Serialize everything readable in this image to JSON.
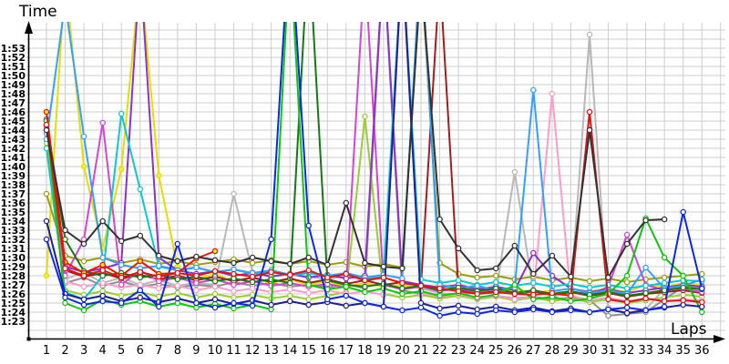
{
  "chart_data": {
    "type": "line",
    "title": "",
    "ylabel": "Time",
    "xlabel": "Laps",
    "grid": true,
    "legend_position": "none",
    "x_ticks": [
      1,
      2,
      3,
      4,
      5,
      6,
      7,
      8,
      9,
      10,
      11,
      12,
      13,
      14,
      15,
      16,
      17,
      18,
      19,
      20,
      21,
      22,
      23,
      24,
      25,
      26,
      27,
      28,
      29,
      30,
      31,
      32,
      33,
      34,
      35,
      36
    ],
    "y_ticks": [
      "1:23",
      "1:24",
      "1:25",
      "1:26",
      "1:27",
      "1:28",
      "1:29",
      "1:30",
      "1:31",
      "1:32",
      "1:33",
      "1:34",
      "1:35",
      "1:36",
      "1:37",
      "1:38",
      "1:39",
      "1:40",
      "1:41",
      "1:42",
      "1:43",
      "1:44",
      "1:45",
      "1:46",
      "1:47",
      "1:48",
      "1:49",
      "1:50",
      "1:51",
      "1:52",
      "1:53"
    ],
    "ylim_seconds": [
      83,
      113
    ],
    "xlim_laps": [
      1,
      36
    ],
    "note_units": "values are lap times in seconds; values above ~115 are pit laps drawn off the top of the plot",
    "colors": {
      "gridline": "#cdcdcd",
      "axis": "#000000",
      "background": "#ffffff"
    },
    "series": [
      {
        "name": "silver",
        "color": "#b8b8b8",
        "marker_fill": "#ffffff",
        "values": [
          104.3,
          87.6,
          88.4,
          87.2,
          87.8,
          87.0,
          87.5,
          86.9,
          87.2,
          87.0,
          97.0,
          88.4,
          88.0,
          88.2,
          87.9,
          87.6,
          88.0,
          87.4,
          87.8,
          122.0,
          86.6,
          86.1,
          85.9,
          86.2,
          86.0,
          99.4,
          86.2,
          85.8,
          86.0,
          114.5,
          84.5,
          83.9,
          84.3,
          86.6,
          87.1,
          87.0
        ]
      },
      {
        "name": "gray",
        "color": "#909090",
        "marker_fill": "#ffffff",
        "values": [
          103.6,
          87.2,
          87.8,
          86.9,
          87.4,
          86.8,
          87.1,
          86.7,
          87.0,
          86.8,
          87.3,
          86.9,
          87.2,
          86.8,
          87.0,
          86.7,
          87.1,
          86.6,
          122.5,
          86.4,
          86.0,
          85.7,
          85.9,
          85.6,
          85.8,
          85.5,
          85.7,
          85.4,
          85.6,
          85.3,
          83.6,
          83.8,
          84.0,
          85.4,
          86.8,
          86.6
        ]
      },
      {
        "name": "yellow",
        "color": "#e8dc00",
        "marker_fill": "#f6ec3c",
        "values": [
          88.0,
          121.0,
          100.0,
          91.0,
          99.7,
          121.0,
          99.0,
          89.0,
          87.6,
          88.2,
          87.4,
          87.8,
          87.2,
          87.6,
          87.0,
          87.4,
          86.8,
          87.2,
          86.8,
          87.0,
          86.6,
          86.9,
          86.4,
          86.7,
          86.2,
          86.5,
          86.1,
          86.4,
          86.0,
          86.3,
          86.6,
          86.2,
          87.0,
          86.8,
          87.2,
          87.0
        ]
      },
      {
        "name": "olive",
        "color": "#9c9c14",
        "marker_fill": "#ffffff",
        "values": [
          97.0,
          90.2,
          89.6,
          90.0,
          89.4,
          89.8,
          89.3,
          89.6,
          89.2,
          89.5,
          89.8,
          89.4,
          89.7,
          89.3,
          89.6,
          89.2,
          89.5,
          89.0,
          89.3,
          88.9,
          121.5,
          89.4,
          88.2,
          87.8,
          88.0,
          87.6,
          87.9,
          87.5,
          87.8,
          87.4,
          87.7,
          87.3,
          87.6,
          87.8,
          88.0,
          88.2
        ]
      },
      {
        "name": "yellowgreen",
        "color": "#9acd32",
        "marker_fill": "#ffffff",
        "values": [
          102.6,
          86.4,
          85.9,
          86.3,
          85.8,
          86.2,
          85.7,
          86.1,
          85.6,
          86.0,
          85.6,
          85.9,
          85.5,
          85.8,
          85.4,
          85.8,
          86.2,
          105.5,
          86.0,
          85.6,
          85.9,
          85.5,
          85.8,
          85.4,
          85.7,
          85.3,
          85.6,
          85.2,
          85.5,
          85.1,
          85.4,
          85.0,
          85.3,
          85.6,
          85.9,
          85.7
        ]
      },
      {
        "name": "pink",
        "color": "#ff9cc8",
        "marker_fill": "#ffffff",
        "values": [
          104.4,
          87.4,
          86.8,
          87.2,
          86.7,
          87.0,
          86.6,
          86.9,
          86.4,
          86.8,
          86.3,
          86.6,
          86.2,
          86.5,
          86.1,
          86.4,
          86.0,
          86.3,
          85.9,
          122.0,
          86.1,
          85.7,
          86.0,
          85.5,
          85.8,
          85.4,
          85.7,
          108.0,
          85.8,
          85.3,
          85.6,
          85.2,
          85.5,
          85.2,
          85.4,
          85.3
        ]
      },
      {
        "name": "darkred",
        "color": "#a01e1e",
        "marker_fill": "#ffffff",
        "values": [
          104.5,
          88.6,
          87.9,
          88.3,
          87.7,
          88.1,
          87.6,
          88.0,
          87.5,
          87.9,
          87.4,
          87.8,
          87.3,
          87.7,
          87.2,
          87.6,
          87.1,
          87.5,
          87.0,
          87.3,
          86.9,
          121.0,
          86.5,
          86.1,
          86.4,
          86.0,
          86.3,
          85.9,
          86.2,
          85.8,
          86.1,
          85.7,
          86.0,
          86.2,
          86.4,
          86.1
        ]
      },
      {
        "name": "magenta",
        "color": "#d246d2",
        "marker_fill": "#ffffff",
        "values": [
          104.5,
          88.0,
          92.0,
          104.8,
          87.0,
          88.6,
          87.4,
          87.8,
          87.2,
          87.6,
          87.0,
          87.4,
          86.9,
          87.2,
          86.8,
          87.1,
          86.7,
          122.0,
          87.0,
          86.5,
          86.8,
          86.3,
          86.6,
          86.2,
          86.5,
          86.1,
          86.4,
          86.0,
          86.3,
          85.9,
          86.8,
          92.5,
          87.0,
          86.4,
          86.6,
          86.2
        ]
      },
      {
        "name": "violet",
        "color": "#8c32c8",
        "marker_fill": "#ffffff",
        "values": [
          105.2,
          89.0,
          88.4,
          88.8,
          89.4,
          122.0,
          90.0,
          88.6,
          88.2,
          88.5,
          88.0,
          88.3,
          87.9,
          88.2,
          87.8,
          88.1,
          87.7,
          88.0,
          123.0,
          87.4,
          87.0,
          86.7,
          87.0,
          86.5,
          86.8,
          86.4,
          90.5,
          88.0,
          86.6,
          86.2,
          86.5,
          86.1,
          86.4,
          86.7,
          87.0,
          86.8
        ]
      },
      {
        "name": "cyan",
        "color": "#0ac8d2",
        "marker_fill": "#ffffff",
        "values": [
          102.0,
          86.2,
          85.4,
          88.0,
          105.8,
          97.5,
          89.0,
          88.6,
          88.9,
          88.4,
          88.7,
          88.2,
          88.5,
          88.0,
          88.3,
          87.9,
          88.2,
          87.7,
          88.0,
          123.0,
          87.6,
          87.2,
          87.5,
          87.0,
          87.3,
          86.9,
          87.2,
          86.8,
          87.1,
          86.7,
          87.0,
          86.6,
          86.9,
          87.2,
          87.5,
          87.4
        ]
      },
      {
        "name": "skyblue",
        "color": "#32a0ff",
        "marker_fill": "#ffffff",
        "values": [
          103.0,
          118.0,
          103.3,
          90.0,
          89.2,
          88.8,
          89.1,
          88.6,
          88.9,
          88.4,
          88.7,
          88.3,
          88.6,
          88.1,
          88.4,
          88.0,
          88.3,
          87.8,
          88.1,
          87.7,
          123.5,
          87.0,
          86.6,
          86.9,
          86.4,
          86.7,
          108.4,
          86.3,
          86.6,
          86.1,
          86.4,
          86.0,
          88.9,
          86.6,
          86.9,
          87.6
        ]
      },
      {
        "name": "darkgreen",
        "color": "#147814",
        "marker_fill": "#ffffff",
        "values": [
          105.0,
          92.0,
          88.5,
          88.0,
          88.3,
          87.8,
          88.1,
          87.6,
          87.9,
          87.4,
          87.7,
          87.3,
          87.6,
          87.2,
          124.5,
          87.5,
          87.0,
          86.8,
          87.1,
          86.6,
          86.9,
          86.4,
          86.7,
          86.3,
          86.6,
          86.1,
          86.4,
          86.0,
          86.3,
          85.9,
          86.2,
          85.8,
          86.1,
          86.4,
          86.7,
          86.5
        ]
      },
      {
        "name": "green",
        "color": "#0ac80a",
        "marker_fill": "#ffffff",
        "values": [
          105.0,
          85.0,
          84.2,
          85.4,
          84.8,
          85.2,
          84.6,
          85.0,
          84.5,
          84.9,
          84.4,
          84.8,
          84.3,
          124.0,
          87.0,
          86.5,
          86.8,
          86.2,
          86.6,
          86.0,
          86.3,
          85.8,
          86.1,
          85.6,
          85.9,
          87.0,
          85.4,
          85.7,
          85.2,
          85.5,
          86.0,
          88.0,
          94.3,
          90.0,
          88.0,
          84.0
        ]
      },
      {
        "name": "navy",
        "color": "#1e1e96",
        "marker_fill": "#ffffff",
        "values": [
          94.0,
          86.0,
          85.4,
          85.8,
          85.2,
          85.6,
          85.1,
          85.5,
          85.0,
          85.4,
          84.9,
          85.3,
          84.8,
          85.2,
          84.8,
          85.1,
          84.7,
          85.0,
          84.6,
          123.0,
          85.0,
          84.4,
          84.7,
          84.3,
          84.6,
          84.2,
          84.5,
          84.1,
          84.4,
          84.0,
          84.3,
          83.9,
          84.2,
          84.5,
          84.8,
          84.6
        ]
      },
      {
        "name": "blue",
        "color": "#0a28e6",
        "marker_fill": "#ffffff",
        "values": [
          92.0,
          85.6,
          84.8,
          85.2,
          85.0,
          86.4,
          84.6,
          91.5,
          85.0,
          84.5,
          85.0,
          84.7,
          92.0,
          126.0,
          93.5,
          85.4,
          85.8,
          85.0,
          84.6,
          84.2,
          84.5,
          83.6,
          84.0,
          83.8,
          84.2,
          84.0,
          84.3,
          84.0,
          84.2,
          84.0,
          84.3,
          84.5,
          84.2,
          84.6,
          95.0,
          86.6
        ]
      },
      {
        "name": "redyellow",
        "color": "#f01400",
        "marker_fill": "#ffe61e",
        "values": [
          106.0,
          89.5,
          88.3,
          89.2,
          88.0,
          89.6,
          88.2,
          88.3,
          89.9,
          90.7,
          null,
          null,
          null,
          null,
          null,
          null,
          null,
          null,
          null,
          null,
          null,
          null,
          null,
          null,
          null,
          null,
          null,
          null,
          null,
          null,
          null,
          null,
          null,
          null,
          null,
          null
        ]
      },
      {
        "name": "red",
        "color": "#e11414",
        "marker_fill": "#ffffff",
        "values": [
          104.6,
          88.8,
          88.0,
          88.6,
          87.8,
          88.4,
          87.9,
          88.3,
          88.0,
          88.5,
          88.2,
          87.9,
          88.4,
          88.1,
          88.6,
          87.8,
          88.2,
          87.5,
          87.8,
          87.2,
          86.9,
          86.6,
          86.3,
          86.0,
          86.2,
          86.0,
          85.9,
          86.1,
          85.8,
          106.0,
          85.4,
          85.1,
          85.5,
          85.2,
          85.3,
          85.1
        ]
      },
      {
        "name": "black",
        "color": "#323232",
        "marker_fill": "#ffffff",
        "values": [
          104.0,
          93.0,
          91.5,
          94.0,
          91.8,
          92.4,
          90.2,
          89.6,
          90.1,
          89.7,
          89.4,
          90.0,
          89.6,
          89.3,
          90.0,
          89.2,
          96.0,
          89.4,
          89.0,
          88.8,
          121.0,
          94.2,
          91.0,
          88.6,
          88.8,
          91.3,
          88.2,
          90.2,
          87.9,
          104.0,
          87.8,
          91.5,
          94.1,
          94.2,
          null,
          null
        ]
      }
    ]
  }
}
